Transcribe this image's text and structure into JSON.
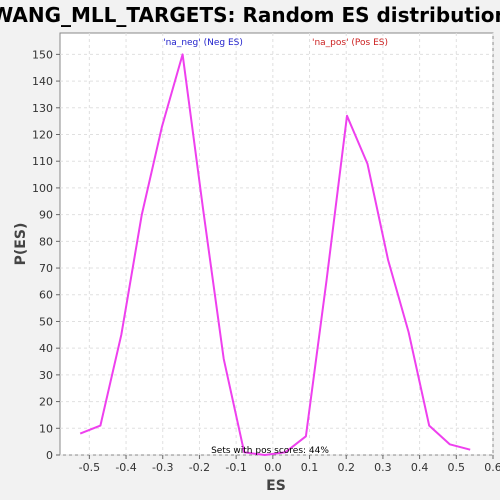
{
  "chart_data": {
    "type": "line",
    "title": "WANG_MLL_TARGETS: Random ES distribution",
    "xlabel": "ES",
    "ylabel": "P(ES)",
    "xlim": [
      -0.58,
      0.6
    ],
    "ylim": [
      0,
      158
    ],
    "x_ticks": [
      -0.5,
      -0.4,
      -0.3,
      -0.2,
      -0.1,
      0.0,
      0.1,
      0.2,
      0.3,
      0.4,
      0.5,
      0.6
    ],
    "x_tick_labels": [
      "-0.5",
      "-0.4",
      "-0.3",
      "-0.2",
      "-0.1",
      "0.0",
      "0.1",
      "0.2",
      "0.3",
      "0.4",
      "0.5",
      "0.6"
    ],
    "y_ticks": [
      0,
      10,
      20,
      30,
      40,
      50,
      60,
      70,
      80,
      90,
      100,
      110,
      120,
      130,
      140,
      150
    ],
    "y_tick_labels": [
      "0",
      "10",
      "20",
      "30",
      "40",
      "50",
      "60",
      "70",
      "80",
      "90",
      "100",
      "110",
      "120",
      "130",
      "140",
      "150"
    ],
    "grid": true,
    "series": [
      {
        "color": "#ee40ee",
        "x": [
          -0.525,
          -0.47,
          -0.413,
          -0.357,
          -0.302,
          -0.246,
          -0.19,
          -0.134,
          -0.078,
          -0.022,
          0.034,
          0.09,
          0.146,
          0.202,
          0.258,
          0.314,
          0.37,
          0.426,
          0.482,
          0.538
        ],
        "y": [
          8,
          11,
          45,
          90,
          123,
          150,
          92,
          36,
          1,
          0,
          1,
          7,
          65,
          127,
          109,
          73,
          46,
          11,
          4,
          2
        ]
      }
    ],
    "annotations": [
      {
        "text": "'na_neg' (Neg ES)",
        "color": "#2222cc"
      },
      {
        "text": "'na_pos' (Pos ES)",
        "color": "#cc2222"
      },
      {
        "text": "Sets with pos scores: 44%",
        "color": "#000000"
      }
    ]
  }
}
